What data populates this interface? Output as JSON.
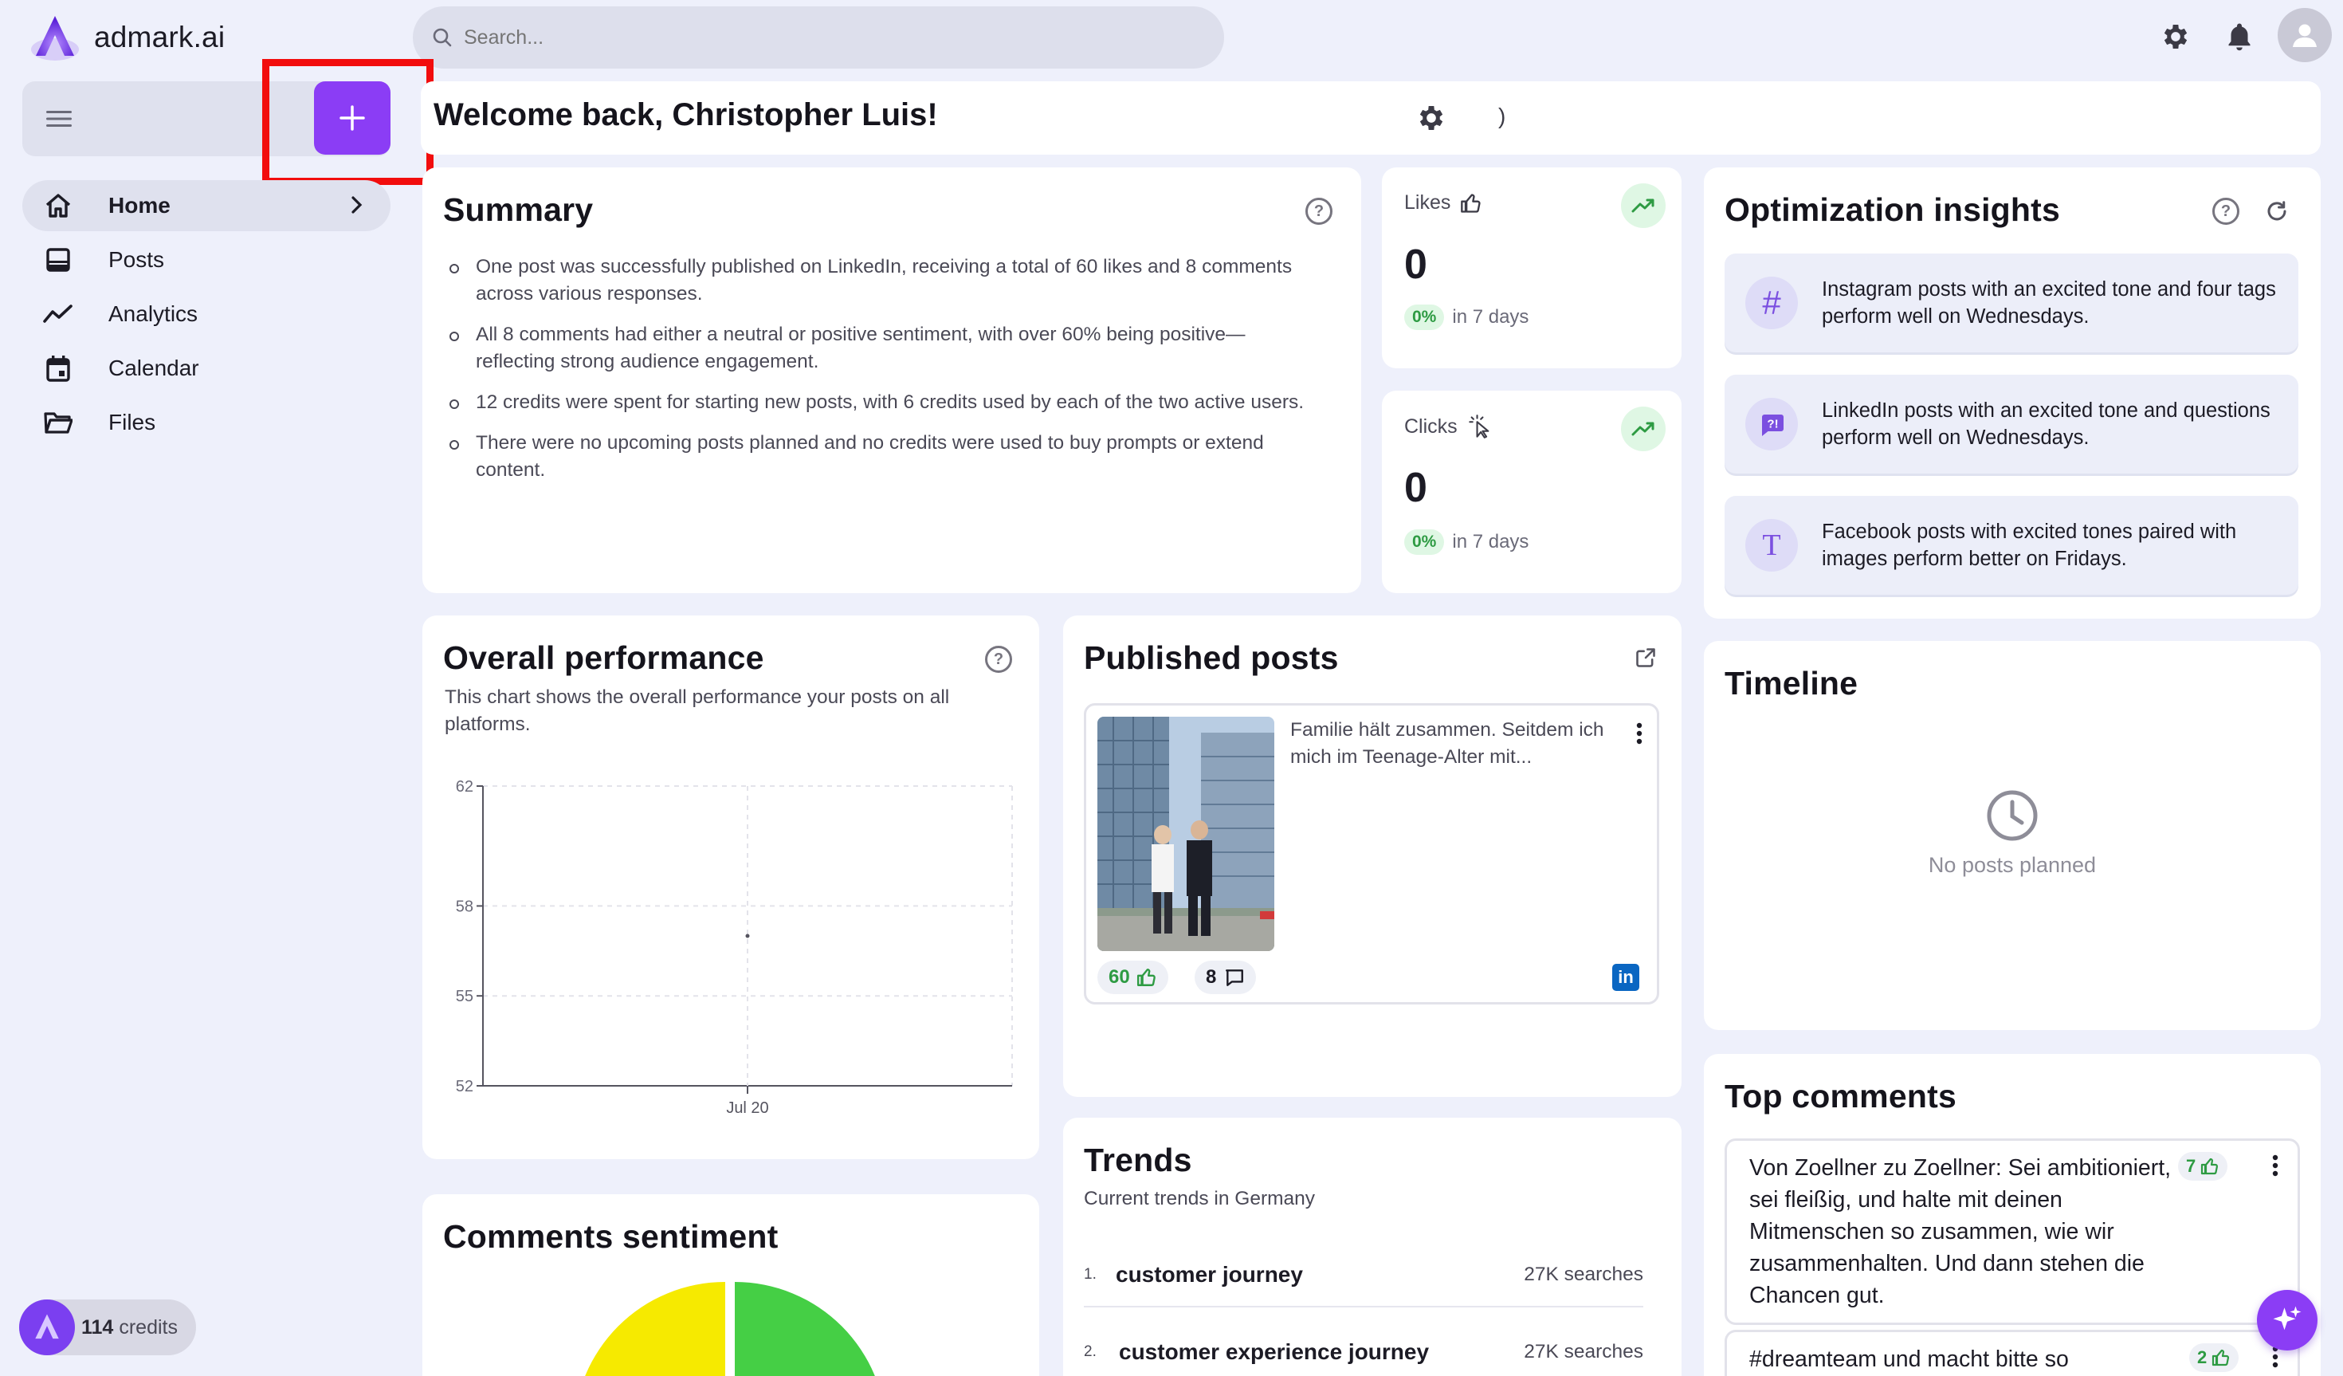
{
  "brand": {
    "name": "admark.ai"
  },
  "search": {
    "placeholder": "Search..."
  },
  "header": {
    "welcome": "Welcome back, Christopher Luis!",
    "right_glyph": ")"
  },
  "sidebar": {
    "items": [
      {
        "label": "Home",
        "icon": "home-icon",
        "active": true
      },
      {
        "label": "Posts",
        "icon": "posts-icon"
      },
      {
        "label": "Analytics",
        "icon": "analytics-icon"
      },
      {
        "label": "Calendar",
        "icon": "calendar-icon"
      },
      {
        "label": "Files",
        "icon": "folder-icon"
      }
    ],
    "credits": {
      "count": "114",
      "label": "credits"
    }
  },
  "summary": {
    "title": "Summary",
    "bullets": [
      "One post was successfully published on LinkedIn, receiving a total of 60 likes and 8 comments across various responses.",
      "All 8 comments had either a neutral or positive sentiment, with over 60% being positive—reflecting strong audience engagement.",
      "12 credits were spent for starting new posts, with 6 credits used by each of the two active users.",
      "There were no upcoming posts planned and no credits were used to buy prompts or extend content."
    ]
  },
  "stats": {
    "likes": {
      "label": "Likes",
      "value": "0",
      "change": "0%",
      "period": "in 7 days"
    },
    "clicks": {
      "label": "Clicks",
      "value": "0",
      "change": "0%",
      "period": "in 7 days"
    }
  },
  "insights": {
    "title": "Optimization insights",
    "items": [
      {
        "icon": "hash-icon",
        "text": "Instagram posts with an excited tone and four tags perform well on Wednesdays."
      },
      {
        "icon": "question-bubble-icon",
        "text": "LinkedIn posts with an excited tone and questions perform well on Wednesdays."
      },
      {
        "icon": "text-t-icon",
        "text": "Facebook posts with excited tones paired with images perform better on Fridays."
      }
    ]
  },
  "performance": {
    "title": "Overall performance",
    "description": "This chart shows the overall performance your posts on all platforms."
  },
  "chart_data": {
    "type": "line",
    "x": [
      "Jul 20"
    ],
    "series": [
      {
        "values": [
          57
        ]
      }
    ],
    "y_ticks": [
      52,
      55,
      58,
      62
    ],
    "ylim": [
      52,
      62
    ],
    "grid": true
  },
  "published": {
    "title": "Published posts",
    "post": {
      "text": "Familie hält zusammen. Seitdem ich mich im Teenage-Alter mit...",
      "likes": "60",
      "comments": "8",
      "platform_label": "in"
    }
  },
  "timeline": {
    "title": "Timeline",
    "empty": "No posts planned"
  },
  "trends": {
    "title": "Trends",
    "subtitle": "Current trends in Germany",
    "items": [
      {
        "rank": "1.",
        "term": "customer journey",
        "count": "27K searches"
      },
      {
        "rank": "2.",
        "term": "customer experience journey",
        "count": "27K searches"
      }
    ]
  },
  "sentiment": {
    "title": "Comments sentiment",
    "colors": {
      "neutral": "#f6ea00",
      "positive": "#45cf45"
    }
  },
  "top_comments": {
    "title": "Top comments",
    "items": [
      {
        "text": "Von Zoellner zu Zoellner: Sei ambitioniert, sei fleißig, und halte mit deinen Mitmenschen so zusammen, wie wir zusammenhalten. Und dann stehen die Chancen gut.",
        "likes": "7"
      },
      {
        "text": "#dreamteam und macht bitte so",
        "likes": "2"
      }
    ]
  },
  "colors": {
    "accent": "#8b3df5",
    "highlight": "#f20d0d",
    "positive": "#2e9b43"
  }
}
